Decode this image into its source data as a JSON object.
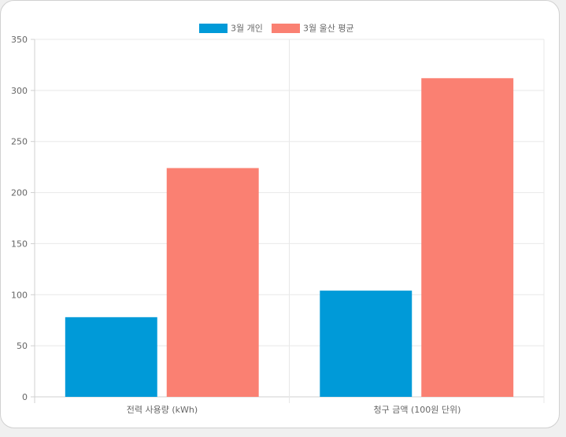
{
  "chart_data": {
    "type": "bar",
    "categories": [
      "전력 사용량 (kWh)",
      "청구 금액 (100원 단위)"
    ],
    "series": [
      {
        "name": "3월 개인",
        "color": "#009ad8",
        "values": [
          78,
          104
        ]
      },
      {
        "name": "3월 울산 평균",
        "color": "#fa8072",
        "values": [
          224,
          312
        ]
      }
    ],
    "ylim": [
      0,
      350
    ],
    "yticks": [
      0,
      50,
      100,
      150,
      200,
      250,
      300,
      350
    ],
    "grid": true,
    "legend_position": "top"
  }
}
